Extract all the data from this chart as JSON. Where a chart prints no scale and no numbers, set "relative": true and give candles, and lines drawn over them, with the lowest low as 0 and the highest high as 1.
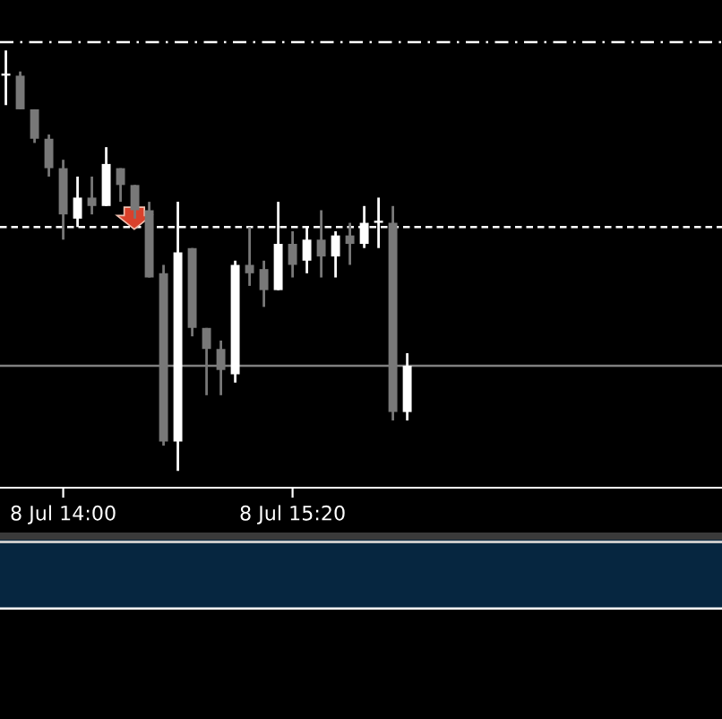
{
  "chart_data": {
    "type": "candlestick",
    "relative": true,
    "categories": [
      null,
      null,
      null,
      null,
      "8 Jul 14:00",
      null,
      null,
      null,
      null,
      null,
      null,
      null,
      null,
      null,
      null,
      null,
      null,
      null,
      null,
      null,
      "8 Jul 15:20",
      null,
      null,
      null,
      null,
      null,
      null,
      null,
      null
    ],
    "ohlc": [
      [
        0.94,
        1,
        0.87,
        0.94
      ],
      [
        0.94,
        0.95,
        0.86,
        0.86
      ],
      [
        0.86,
        0.86,
        0.78,
        0.79
      ],
      [
        0.79,
        0.8,
        0.7,
        0.72
      ],
      [
        0.72,
        0.74,
        0.55,
        0.61
      ],
      [
        0.6,
        0.7,
        0.58,
        0.65
      ],
      [
        0.65,
        0.7,
        0.61,
        0.63
      ],
      [
        0.63,
        0.77,
        0.63,
        0.73
      ],
      [
        0.72,
        0.72,
        0.64,
        0.68
      ],
      [
        0.68,
        0.68,
        0.6,
        0.62
      ],
      [
        0.62,
        0.64,
        0.46,
        0.46
      ],
      [
        0.47,
        0.49,
        0.06,
        0.07
      ],
      [
        0.07,
        0.64,
        0,
        0.52
      ],
      [
        0.53,
        0.53,
        0.32,
        0.34
      ],
      [
        0.34,
        0.34,
        0.18,
        0.29
      ],
      [
        0.29,
        0.31,
        0.18,
        0.24
      ],
      [
        0.23,
        0.5,
        0.21,
        0.49
      ],
      [
        0.49,
        0.58,
        0.44,
        0.47
      ],
      [
        0.48,
        0.5,
        0.39,
        0.43
      ],
      [
        0.43,
        0.64,
        0.43,
        0.54
      ],
      [
        0.54,
        0.57,
        0.46,
        0.49
      ],
      [
        0.5,
        0.58,
        0.47,
        0.55
      ],
      [
        0.55,
        0.62,
        0.46,
        0.51
      ],
      [
        0.51,
        0.57,
        0.46,
        0.56
      ],
      [
        0.56,
        0.59,
        0.49,
        0.54
      ],
      [
        0.54,
        0.63,
        0.53,
        0.59
      ],
      [
        0.59,
        0.65,
        0.53,
        0.59
      ],
      [
        0.59,
        0.63,
        0.12,
        0.14
      ],
      [
        0.14,
        0.28,
        0.12,
        0.25
      ]
    ],
    "colors": [
      "#ffffff",
      "#787878",
      "#787878",
      "#787878",
      "#787878",
      "#ffffff",
      "#787878",
      "#ffffff",
      "#787878",
      "#787878",
      "#787878",
      "#787878",
      "#ffffff",
      "#787878",
      "#787878",
      "#787878",
      "#ffffff",
      "#787878",
      "#787878",
      "#ffffff",
      "#787878",
      "#ffffff",
      "#787878",
      "#ffffff",
      "#787878",
      "#ffffff",
      "#ffffff",
      "#787878",
      "#ffffff"
    ],
    "ref_lines": [
      {
        "axis": "y",
        "value": 1.02,
        "color": "#ffffff",
        "line_style": "dashdot"
      },
      {
        "axis": "y",
        "value": 0.58,
        "color": "#ffffff",
        "line_style": "dashed"
      },
      {
        "axis": "y",
        "value": 0.25,
        "color": "#808080",
        "line_style": "solid"
      }
    ],
    "legend": false
  }
}
